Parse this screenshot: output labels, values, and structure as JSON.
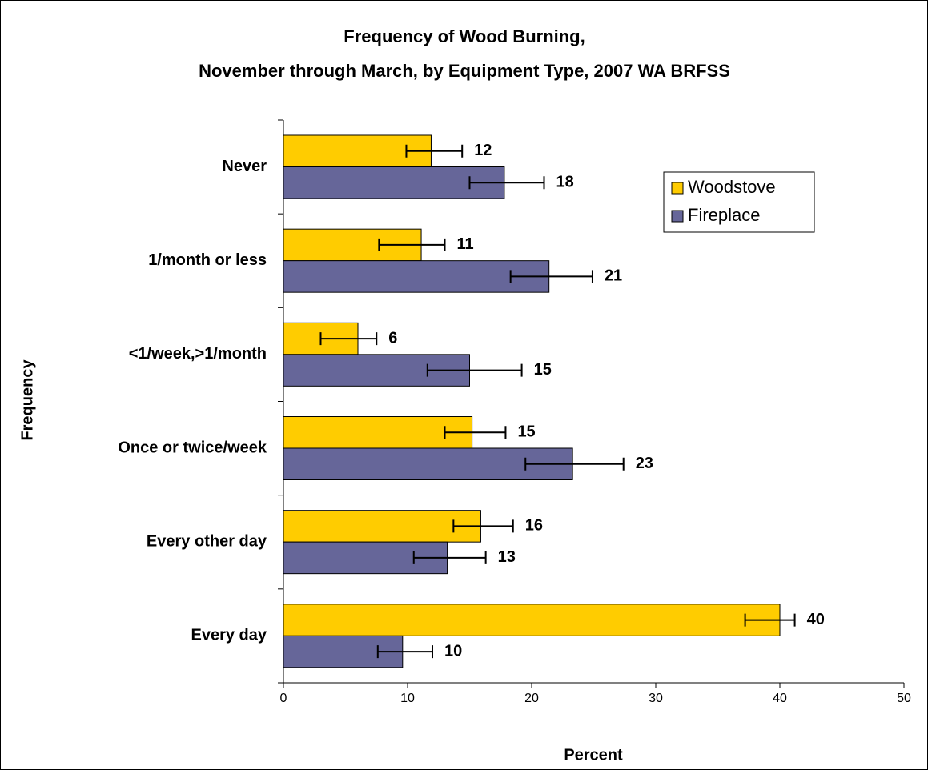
{
  "chart_data": {
    "type": "bar",
    "orientation": "horizontal",
    "title": [
      "Frequency of Wood Burning,",
      "November through March, by Equipment Type, 2007 WA BRFSS"
    ],
    "x_label": "Percent",
    "y_label": "Frequency",
    "categories": [
      "Never",
      "1/month or less",
      "<1/week,>1/month",
      "Once or twice/week",
      "Every other day",
      "Every day"
    ],
    "series": [
      {
        "name": "Woodstove",
        "color": "#ffcc00",
        "values": [
          11.9,
          11.1,
          6.0,
          15.2,
          15.9,
          40.0
        ],
        "value_labels": [
          "12",
          "11",
          "6",
          "15",
          "16",
          "40"
        ],
        "ci_low": [
          9.9,
          7.7,
          3.0,
          13.0,
          13.7,
          37.2
        ],
        "ci_high": [
          14.4,
          13.0,
          7.5,
          17.9,
          18.5,
          41.2
        ]
      },
      {
        "name": "Fireplace",
        "color": "#666699",
        "values": [
          17.8,
          21.4,
          15.0,
          23.3,
          13.2,
          9.6
        ],
        "value_labels": [
          "18",
          "21",
          "15",
          "23",
          "13",
          "10"
        ],
        "ci_low": [
          15.0,
          18.3,
          11.6,
          19.5,
          10.5,
          7.6
        ],
        "ci_high": [
          21.0,
          24.9,
          19.2,
          27.4,
          16.3,
          12.0
        ]
      }
    ],
    "xlim": [
      0,
      50
    ],
    "xticks": [
      0,
      10,
      20,
      30,
      40,
      50
    ],
    "legend": "upper right"
  }
}
